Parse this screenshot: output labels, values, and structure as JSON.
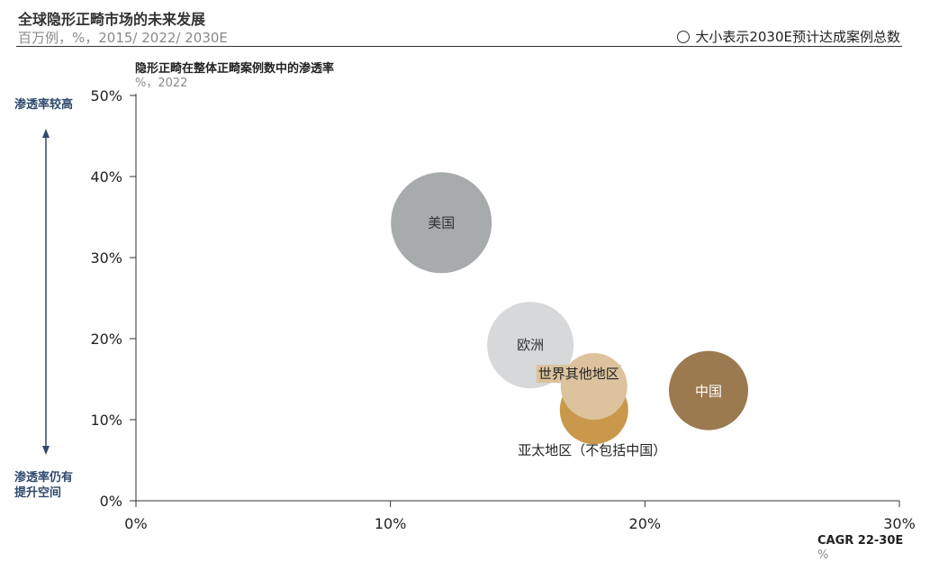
{
  "header": {
    "title": "全球隐形正畸市场的未来发展",
    "subtitle": "百万例，%，2015/ 2022/ 2030E",
    "legend_text": "大小表示2030E预计达成案例总数"
  },
  "axis_labels": {
    "y_title": "隐形正畸在整体正畸案例数中的渗透率",
    "y_sub": "%，2022",
    "x_title": "CAGR 22-30E",
    "x_sub": "%",
    "top_side": "渗透率较高",
    "bottom_side_line1": "渗透率仍有",
    "bottom_side_line2": "提升空间"
  },
  "chart_data": {
    "type": "scatter",
    "xlim": [
      0,
      30
    ],
    "ylim": [
      0,
      50
    ],
    "x_ticks": [
      "0%",
      "10%",
      "20%",
      "30%"
    ],
    "y_ticks": [
      "0%",
      "10%",
      "20%",
      "30%",
      "40%",
      "50%"
    ],
    "grid": false,
    "legend_placement": "top-right",
    "series": [
      {
        "name": "美国",
        "x": 12.0,
        "y": 34.3,
        "size": 56,
        "color": "#a7abac",
        "label_color": "#333333"
      },
      {
        "name": "欧洲",
        "x": 15.5,
        "y": 19.2,
        "size": 48,
        "color": "#d6d8d9",
        "label_color": "#333333"
      },
      {
        "name": "亚太地区（不包括中国）",
        "x": 18.0,
        "y": 11.2,
        "size": 38,
        "color": "#c9984b",
        "label_color": "#222222"
      },
      {
        "name": "世界其他地区",
        "x": 18.0,
        "y": 14.1,
        "size": 37,
        "color": "#dcc39d",
        "label_color": "#222222"
      },
      {
        "name": "中国",
        "x": 22.5,
        "y": 13.6,
        "size": 44,
        "color": "#9c7a4f",
        "label_color": "#ffffff"
      }
    ]
  }
}
